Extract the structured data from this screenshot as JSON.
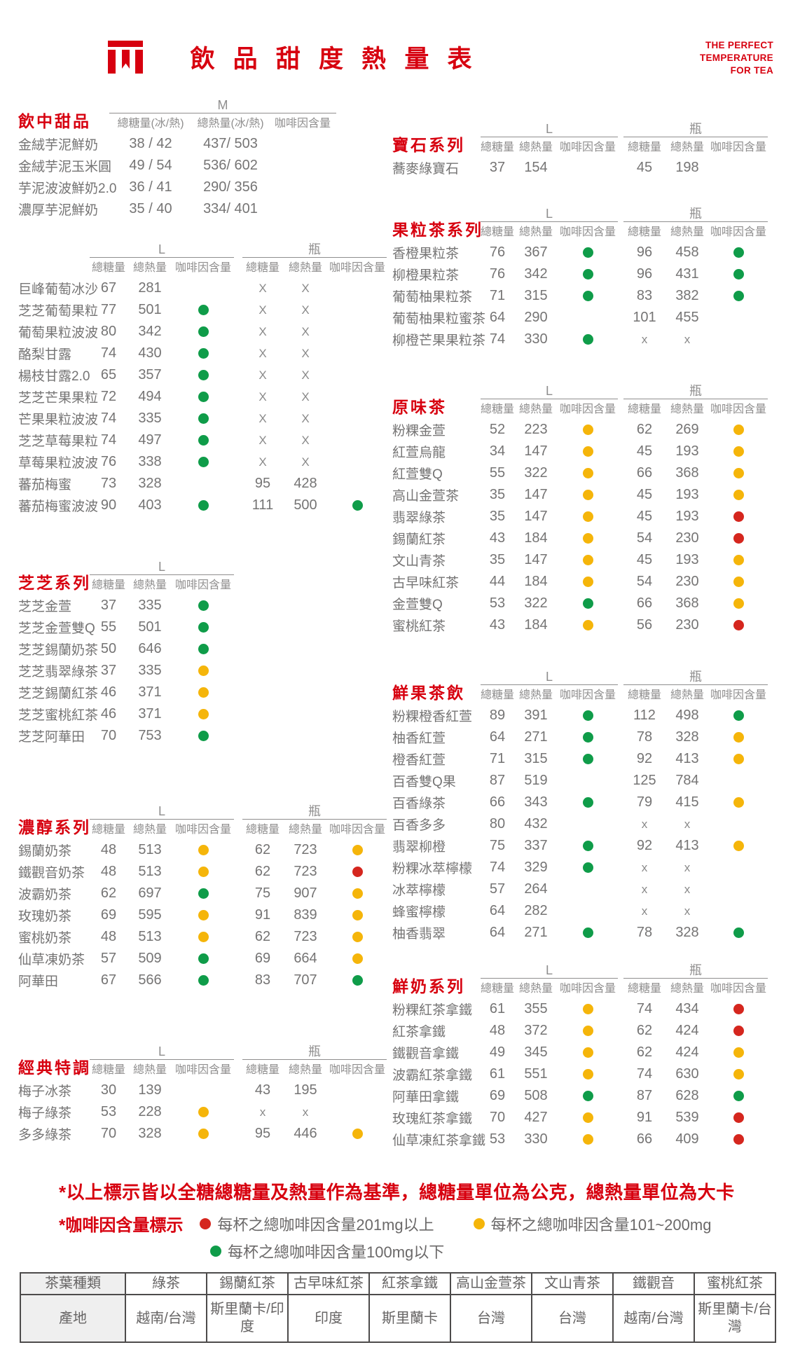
{
  "header": {
    "title": "飲品甜度熱量表",
    "title_display": "飲 品 甜 度 熱 量 表",
    "tagline": [
      "THE PERFECT",
      "TEMPERATURE",
      "FOR TEA"
    ],
    "logo": "brand-logo"
  },
  "colors": {
    "brand_red": "#d7000f",
    "dot_green": "#0f9c49",
    "dot_yellow": "#f5b50a",
    "dot_red": "#d5261e",
    "text_gray": "#757474",
    "line_gray": "#8f8e8e"
  },
  "caffeine_levels": {
    "g": "green",
    "y": "yellow",
    "r": "red"
  },
  "sections": [
    {
      "key": "drink-desserts",
      "side": "left",
      "type": "m",
      "title": "飲中甜品",
      "groups": [
        {
          "size": "M",
          "cols": [
            "總糖量(冰/熱)",
            "總熱量(冰/熱)",
            "咖啡因含量"
          ]
        }
      ],
      "rows": [
        [
          "金絨芋泥鮮奶",
          [
            "38 / 42",
            "437/ 503",
            ""
          ]
        ],
        [
          "金絨芋泥玉米圓",
          [
            "49 / 54",
            "536/ 602",
            ""
          ]
        ],
        [
          "芋泥波波鮮奶2.0",
          [
            "36 / 41",
            "290/ 356",
            ""
          ]
        ],
        [
          "濃厚芋泥鮮奶",
          [
            "35 / 40",
            "334/ 401",
            ""
          ]
        ]
      ]
    },
    {
      "key": "fruit-specials",
      "side": "left",
      "type": "l2",
      "title": "",
      "groups": [
        {
          "size": "L",
          "cols": [
            "總糖量",
            "總熱量",
            "咖啡因含量"
          ]
        },
        {
          "size": "瓶",
          "cols": [
            "總糖量",
            "總熱量",
            "咖啡因含量"
          ]
        }
      ],
      "rows": [
        [
          "巨峰葡萄冰沙",
          [
            "67",
            "281",
            ""
          ],
          [
            "X",
            "X",
            ""
          ]
        ],
        [
          "芝芝葡萄果粒",
          [
            "77",
            "501",
            "g"
          ],
          [
            "X",
            "X",
            ""
          ]
        ],
        [
          "葡萄果粒波波",
          [
            "80",
            "342",
            "g"
          ],
          [
            "X",
            "X",
            ""
          ]
        ],
        [
          "酪梨甘露",
          [
            "74",
            "430",
            "g"
          ],
          [
            "X",
            "X",
            ""
          ]
        ],
        [
          "楊枝甘露2.0",
          [
            "65",
            "357",
            "g"
          ],
          [
            "X",
            "X",
            ""
          ]
        ],
        [
          "芝芝芒果果粒",
          [
            "72",
            "494",
            "g"
          ],
          [
            "X",
            "X",
            ""
          ]
        ],
        [
          "芒果果粒波波",
          [
            "74",
            "335",
            "g"
          ],
          [
            "X",
            "X",
            ""
          ]
        ],
        [
          "芝芝草莓果粒",
          [
            "74",
            "497",
            "g"
          ],
          [
            "X",
            "X",
            ""
          ]
        ],
        [
          "草莓果粒波波",
          [
            "76",
            "338",
            "g"
          ],
          [
            "X",
            "X",
            ""
          ]
        ],
        [
          "蕃茄梅蜜",
          [
            "73",
            "328",
            ""
          ],
          [
            "95",
            "428",
            ""
          ]
        ],
        [
          "蕃茄梅蜜波波",
          [
            "90",
            "403",
            "g"
          ],
          [
            "111",
            "500",
            "g"
          ]
        ]
      ]
    },
    {
      "key": "zhizhi",
      "side": "left",
      "type": "l1",
      "title": "芝芝系列",
      "groups": [
        {
          "size": "L",
          "cols": [
            "總糖量",
            "總熱量",
            "咖啡因含量"
          ]
        }
      ],
      "rows": [
        [
          "芝芝金萱",
          [
            "37",
            "335",
            "g"
          ]
        ],
        [
          "芝芝金萱雙Q",
          [
            "55",
            "501",
            "g"
          ]
        ],
        [
          "芝芝錫蘭奶茶",
          [
            "50",
            "646",
            "g"
          ]
        ],
        [
          "芝芝翡翠綠茶",
          [
            "37",
            "335",
            "y"
          ]
        ],
        [
          "芝芝錫蘭紅茶",
          [
            "46",
            "371",
            "y"
          ]
        ],
        [
          "芝芝蜜桃紅茶",
          [
            "46",
            "371",
            "y"
          ]
        ],
        [
          "芝芝阿華田",
          [
            "70",
            "753",
            "g"
          ]
        ]
      ]
    },
    {
      "key": "rich-milk-tea",
      "side": "left",
      "type": "l2",
      "title": "濃醇系列",
      "groups": [
        {
          "size": "L",
          "cols": [
            "總糖量",
            "總熱量",
            "咖啡因含量"
          ]
        },
        {
          "size": "瓶",
          "cols": [
            "總糖量",
            "總熱量",
            "咖啡因含量"
          ]
        }
      ],
      "rows": [
        [
          "錫蘭奶茶",
          [
            "48",
            "513",
            "y"
          ],
          [
            "62",
            "723",
            "y"
          ]
        ],
        [
          "鐵觀音奶茶",
          [
            "48",
            "513",
            "y"
          ],
          [
            "62",
            "723",
            "r"
          ]
        ],
        [
          "波霸奶茶",
          [
            "62",
            "697",
            "g"
          ],
          [
            "75",
            "907",
            "y"
          ]
        ],
        [
          "玫瑰奶茶",
          [
            "69",
            "595",
            "y"
          ],
          [
            "91",
            "839",
            "y"
          ]
        ],
        [
          "蜜桃奶茶",
          [
            "48",
            "513",
            "y"
          ],
          [
            "62",
            "723",
            "y"
          ]
        ],
        [
          "仙草凍奶茶",
          [
            "57",
            "509",
            "g"
          ],
          [
            "69",
            "664",
            "y"
          ]
        ],
        [
          "阿華田",
          [
            "67",
            "566",
            "g"
          ],
          [
            "83",
            "707",
            "g"
          ]
        ]
      ]
    },
    {
      "key": "classic-specials",
      "side": "left",
      "type": "l2",
      "title": "經典特調",
      "groups": [
        {
          "size": "L",
          "cols": [
            "總糖量",
            "總熱量",
            "咖啡因含量"
          ]
        },
        {
          "size": "瓶",
          "cols": [
            "總糖量",
            "總熱量",
            "咖啡因含量"
          ]
        }
      ],
      "rows": [
        [
          "梅子冰茶",
          [
            "30",
            "139",
            ""
          ],
          [
            "43",
            "195",
            ""
          ]
        ],
        [
          "梅子綠茶",
          [
            "53",
            "228",
            "y"
          ],
          [
            "x",
            "x",
            ""
          ]
        ],
        [
          "多多綠茶",
          [
            "70",
            "328",
            "y"
          ],
          [
            "95",
            "446",
            "y"
          ]
        ]
      ]
    },
    {
      "key": "gem",
      "side": "right",
      "type": "r2",
      "title": "寶石系列",
      "groups": [
        {
          "size": "L",
          "cols": [
            "總糖量",
            "總熱量",
            "咖啡因含量"
          ]
        },
        {
          "size": "瓶",
          "cols": [
            "總糖量",
            "總熱量",
            "咖啡因含量"
          ]
        }
      ],
      "rows": [
        [
          "蕎麥綠寶石",
          [
            "37",
            "154",
            ""
          ],
          [
            "45",
            "198",
            ""
          ]
        ]
      ]
    },
    {
      "key": "fruit-tea",
      "side": "right",
      "type": "r2",
      "title": "果粒茶系列",
      "groups": [
        {
          "size": "L",
          "cols": [
            "總糖量",
            "總熱量",
            "咖啡因含量"
          ]
        },
        {
          "size": "瓶",
          "cols": [
            "總糖量",
            "總熱量",
            "咖啡因含量"
          ]
        }
      ],
      "rows": [
        [
          "香橙果粒茶",
          [
            "76",
            "367",
            "g"
          ],
          [
            "96",
            "458",
            "g"
          ]
        ],
        [
          "柳橙果粒茶",
          [
            "76",
            "342",
            "g"
          ],
          [
            "96",
            "431",
            "g"
          ]
        ],
        [
          "葡萄柚果粒茶",
          [
            "71",
            "315",
            "g"
          ],
          [
            "83",
            "382",
            "g"
          ]
        ],
        [
          "葡萄柚果粒蜜茶",
          [
            "64",
            "290",
            ""
          ],
          [
            "101",
            "455",
            ""
          ]
        ],
        [
          "柳橙芒果果粒茶",
          [
            "74",
            "330",
            "g"
          ],
          [
            "x",
            "x",
            ""
          ]
        ]
      ]
    },
    {
      "key": "original-tea",
      "side": "right",
      "type": "r2",
      "title": "原味茶",
      "groups": [
        {
          "size": "L",
          "cols": [
            "總糖量",
            "總熱量",
            "咖啡因含量"
          ]
        },
        {
          "size": "瓶",
          "cols": [
            "總糖量",
            "總熱量",
            "咖啡因含量"
          ]
        }
      ],
      "rows": [
        [
          "粉粿金萱",
          [
            "52",
            "223",
            "y"
          ],
          [
            "62",
            "269",
            "y"
          ]
        ],
        [
          "紅萱烏龍",
          [
            "34",
            "147",
            "y"
          ],
          [
            "45",
            "193",
            "y"
          ]
        ],
        [
          "紅萱雙Q",
          [
            "55",
            "322",
            "y"
          ],
          [
            "66",
            "368",
            "y"
          ]
        ],
        [
          "高山金萱茶",
          [
            "35",
            "147",
            "y"
          ],
          [
            "45",
            "193",
            "y"
          ]
        ],
        [
          "翡翠綠茶",
          [
            "35",
            "147",
            "y"
          ],
          [
            "45",
            "193",
            "r"
          ]
        ],
        [
          "錫蘭紅茶",
          [
            "43",
            "184",
            "y"
          ],
          [
            "54",
            "230",
            "r"
          ]
        ],
        [
          "文山青茶",
          [
            "35",
            "147",
            "y"
          ],
          [
            "45",
            "193",
            "y"
          ]
        ],
        [
          "古早味紅茶",
          [
            "44",
            "184",
            "y"
          ],
          [
            "54",
            "230",
            "y"
          ]
        ],
        [
          "金萱雙Q",
          [
            "53",
            "322",
            "g"
          ],
          [
            "66",
            "368",
            "y"
          ]
        ],
        [
          "蜜桃紅茶",
          [
            "43",
            "184",
            "y"
          ],
          [
            "56",
            "230",
            "r"
          ]
        ]
      ]
    },
    {
      "key": "fresh-fruit-tea",
      "side": "right",
      "type": "r2",
      "title": "鮮果茶飲",
      "groups": [
        {
          "size": "L",
          "cols": [
            "總糖量",
            "總熱量",
            "咖啡因含量"
          ]
        },
        {
          "size": "瓶",
          "cols": [
            "總糖量",
            "總熱量",
            "咖啡因含量"
          ]
        }
      ],
      "rows": [
        [
          "粉粿橙香紅萱",
          [
            "89",
            "391",
            "g"
          ],
          [
            "112",
            "498",
            "g"
          ]
        ],
        [
          "柚香紅萱",
          [
            "64",
            "271",
            "g"
          ],
          [
            "78",
            "328",
            "y"
          ]
        ],
        [
          "橙香紅萱",
          [
            "71",
            "315",
            "g"
          ],
          [
            "92",
            "413",
            "y"
          ]
        ],
        [
          "百香雙Q果",
          [
            "87",
            "519",
            ""
          ],
          [
            "125",
            "784",
            ""
          ]
        ],
        [
          "百香綠茶",
          [
            "66",
            "343",
            "g"
          ],
          [
            "79",
            "415",
            "y"
          ]
        ],
        [
          "百香多多",
          [
            "80",
            "432",
            ""
          ],
          [
            "x",
            "x",
            ""
          ]
        ],
        [
          "翡翠柳橙",
          [
            "75",
            "337",
            "g"
          ],
          [
            "92",
            "413",
            "y"
          ]
        ],
        [
          "粉粿冰萃檸檬",
          [
            "74",
            "329",
            "g"
          ],
          [
            "x",
            "x",
            ""
          ]
        ],
        [
          "冰萃檸檬",
          [
            "57",
            "264",
            ""
          ],
          [
            "x",
            "x",
            ""
          ]
        ],
        [
          "蜂蜜檸檬",
          [
            "64",
            "282",
            ""
          ],
          [
            "x",
            "x",
            ""
          ]
        ],
        [
          "柚香翡翠",
          [
            "64",
            "271",
            "g"
          ],
          [
            "78",
            "328",
            "g"
          ]
        ]
      ]
    },
    {
      "key": "fresh-milk",
      "side": "right",
      "type": "r2",
      "title": "鮮奶系列",
      "groups": [
        {
          "size": "L",
          "cols": [
            "總糖量",
            "總熱量",
            "咖啡因含量"
          ]
        },
        {
          "size": "瓶",
          "cols": [
            "總糖量",
            "總熱量",
            "咖啡因含量"
          ]
        }
      ],
      "rows": [
        [
          "粉粿紅茶拿鐵",
          [
            "61",
            "355",
            "y"
          ],
          [
            "74",
            "434",
            "r"
          ]
        ],
        [
          "紅茶拿鐵",
          [
            "48",
            "372",
            "y"
          ],
          [
            "62",
            "424",
            "r"
          ]
        ],
        [
          "鐵觀音拿鐵",
          [
            "49",
            "345",
            "y"
          ],
          [
            "62",
            "424",
            "y"
          ]
        ],
        [
          "波霸紅茶拿鐵",
          [
            "61",
            "551",
            "y"
          ],
          [
            "74",
            "630",
            "y"
          ]
        ],
        [
          "阿華田拿鐵",
          [
            "69",
            "508",
            "g"
          ],
          [
            "87",
            "628",
            "g"
          ]
        ],
        [
          "玫瑰紅茶拿鐵",
          [
            "70",
            "427",
            "y"
          ],
          [
            "91",
            "539",
            "r"
          ]
        ],
        [
          "仙草凍紅茶拿鐵",
          [
            "53",
            "330",
            "y"
          ],
          [
            "66",
            "409",
            "r"
          ]
        ]
      ]
    }
  ],
  "footer": {
    "note1": "*以上標示皆以全糖總糖量及熱量作為基準，總糖量單位為公克，總熱量單位為大卡",
    "note2_label": "*咖啡因含量標示",
    "legend": [
      {
        "level": "red",
        "text": "每杯之總咖啡因含量201mg以上"
      },
      {
        "level": "yellow",
        "text": "每杯之總咖啡因含量101~200mg"
      },
      {
        "level": "green",
        "text": "每杯之總咖啡因含量100mg以下"
      }
    ],
    "origin_table": {
      "rows": [
        [
          "茶葉種類",
          "綠茶",
          "錫蘭紅茶",
          "古早味紅茶",
          "紅茶拿鐵",
          "高山金萱茶",
          "文山青茶",
          "鐵觀音",
          "蜜桃紅茶"
        ],
        [
          "產地",
          "越南/台灣",
          "斯里蘭卡/印度",
          "印度",
          "斯里蘭卡",
          "台灣",
          "台灣",
          "越南/台灣",
          "斯里蘭卡/台灣"
        ]
      ]
    }
  }
}
